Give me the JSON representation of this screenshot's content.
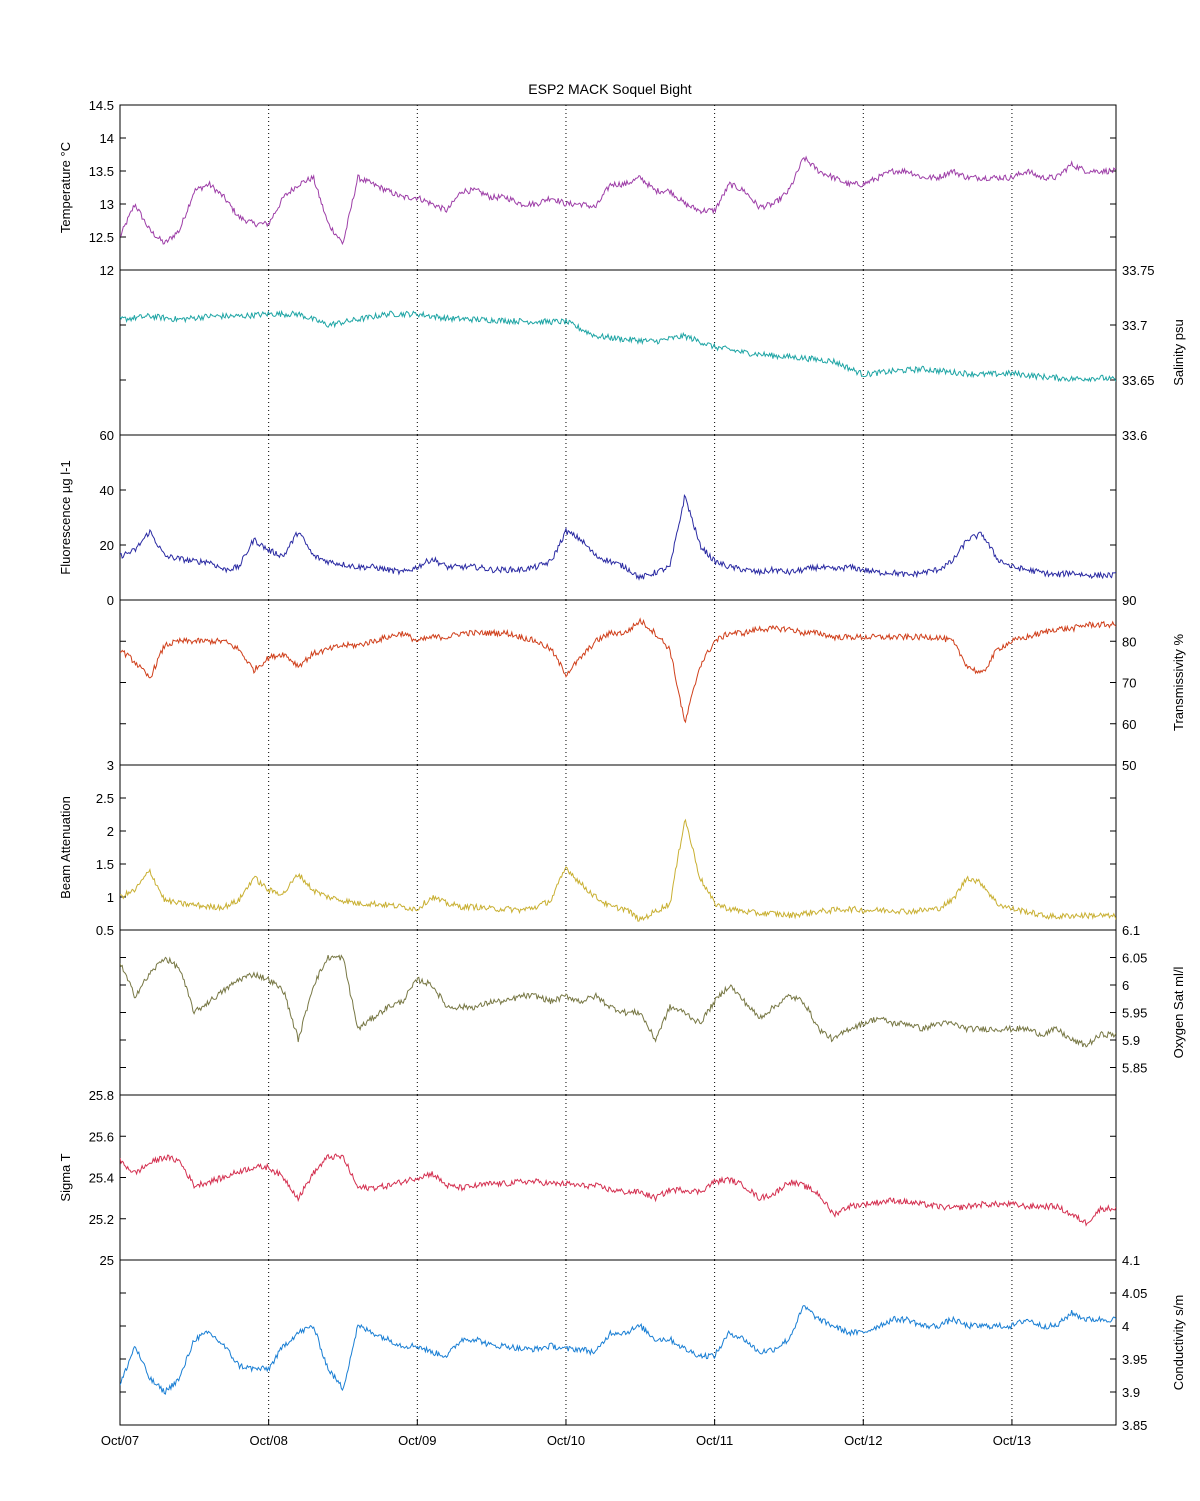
{
  "title": "ESP2 MACK  Soquel Bight",
  "x_ticks": [
    "Oct/07",
    "Oct/08",
    "Oct/09",
    "Oct/10",
    "Oct/11",
    "Oct/12",
    "Oct/13"
  ],
  "chart_data": [
    {
      "type": "line",
      "name": "temperature",
      "ylabel": "Temperature °C",
      "axis_side": "left",
      "color": "#9e3fa8",
      "ylim": [
        12,
        14.5
      ],
      "yticks": [
        12,
        12.5,
        13,
        13.5,
        14,
        14.5
      ],
      "tick_labels": [
        "12",
        "12.5",
        "13",
        "13.5",
        "14",
        "14.5"
      ],
      "x_unit": "days since Oct/07 00:00",
      "xlim": [
        0,
        6.7
      ],
      "x": [
        0,
        0.1,
        0.2,
        0.3,
        0.4,
        0.5,
        0.6,
        0.7,
        0.8,
        0.9,
        1.0,
        1.1,
        1.2,
        1.3,
        1.4,
        1.5,
        1.6,
        1.7,
        1.8,
        1.9,
        2.0,
        2.1,
        2.2,
        2.3,
        2.4,
        2.5,
        2.6,
        2.7,
        2.8,
        2.9,
        3.0,
        3.1,
        3.2,
        3.3,
        3.4,
        3.5,
        3.6,
        3.7,
        3.8,
        3.9,
        4.0,
        4.1,
        4.2,
        4.3,
        4.4,
        4.5,
        4.6,
        4.7,
        4.8,
        4.9,
        5.0,
        5.1,
        5.2,
        5.3,
        5.4,
        5.5,
        5.6,
        5.7,
        5.8,
        5.9,
        6.0,
        6.1,
        6.2,
        6.3,
        6.4,
        6.5,
        6.6,
        6.7
      ],
      "values": [
        12.5,
        13.0,
        12.6,
        12.4,
        12.6,
        13.2,
        13.3,
        13.1,
        12.8,
        12.7,
        12.7,
        13.1,
        13.3,
        13.4,
        12.7,
        12.4,
        13.4,
        13.3,
        13.2,
        13.1,
        13.1,
        13.0,
        12.9,
        13.2,
        13.2,
        13.1,
        13.1,
        13.0,
        13.0,
        13.1,
        13.0,
        13.0,
        12.95,
        13.3,
        13.3,
        13.4,
        13.2,
        13.2,
        13.0,
        12.9,
        12.9,
        13.3,
        13.2,
        12.95,
        13.0,
        13.2,
        13.7,
        13.5,
        13.4,
        13.3,
        13.3,
        13.4,
        13.5,
        13.5,
        13.4,
        13.4,
        13.5,
        13.4,
        13.4,
        13.4,
        13.4,
        13.5,
        13.4,
        13.4,
        13.6,
        13.5,
        13.5,
        13.5
      ]
    },
    {
      "type": "line",
      "name": "salinity",
      "ylabel": "Salinity psu",
      "axis_side": "right",
      "color": "#1fa5a5",
      "ylim": [
        33.6,
        33.75
      ],
      "yticks": [
        33.6,
        33.65,
        33.7,
        33.75
      ],
      "tick_labels": [
        "33.6",
        "33.65",
        "33.7",
        "33.75"
      ],
      "x_unit": "days since Oct/07 00:00",
      "xlim": [
        0,
        6.7
      ],
      "x": [
        0,
        0.2,
        0.4,
        0.6,
        0.8,
        1.0,
        1.2,
        1.4,
        1.6,
        1.8,
        2.0,
        2.2,
        2.4,
        2.6,
        2.8,
        3.0,
        3.2,
        3.4,
        3.6,
        3.8,
        4.0,
        4.2,
        4.4,
        4.6,
        4.8,
        5.0,
        5.2,
        5.4,
        5.6,
        5.8,
        6.0,
        6.2,
        6.4,
        6.6,
        6.7
      ],
      "values": [
        33.705,
        33.708,
        33.705,
        33.708,
        33.708,
        33.71,
        33.71,
        33.7,
        33.705,
        33.71,
        33.71,
        33.706,
        33.705,
        33.704,
        33.703,
        33.703,
        33.69,
        33.687,
        33.685,
        33.69,
        33.68,
        33.675,
        33.672,
        33.67,
        33.667,
        33.655,
        33.658,
        33.66,
        33.657,
        33.655,
        33.656,
        33.653,
        33.651,
        33.652,
        33.65
      ]
    },
    {
      "type": "line",
      "name": "fluorescence",
      "ylabel": "Fluorescence µg l-1",
      "axis_side": "left",
      "color": "#2b2ba3",
      "ylim": [
        0,
        60
      ],
      "yticks": [
        0,
        20,
        40,
        60
      ],
      "tick_labels": [
        "0",
        "20",
        "40",
        "60"
      ],
      "x_unit": "days since Oct/07 00:00",
      "xlim": [
        0,
        6.7
      ],
      "x": [
        0,
        0.1,
        0.2,
        0.3,
        0.4,
        0.5,
        0.6,
        0.7,
        0.8,
        0.9,
        1.0,
        1.1,
        1.2,
        1.3,
        1.4,
        1.5,
        1.6,
        1.7,
        1.8,
        1.9,
        2.0,
        2.1,
        2.2,
        2.3,
        2.4,
        2.5,
        2.6,
        2.7,
        2.8,
        2.9,
        3.0,
        3.1,
        3.2,
        3.3,
        3.4,
        3.5,
        3.6,
        3.7,
        3.8,
        3.9,
        4.0,
        4.1,
        4.2,
        4.3,
        4.4,
        4.5,
        4.6,
        4.7,
        4.8,
        4.9,
        5.0,
        5.1,
        5.2,
        5.3,
        5.4,
        5.5,
        5.6,
        5.7,
        5.8,
        5.9,
        6.0,
        6.1,
        6.2,
        6.3,
        6.4,
        6.5,
        6.6,
        6.7
      ],
      "values": [
        16,
        18,
        25,
        16,
        15,
        14,
        14,
        11,
        12,
        22,
        18,
        16,
        25,
        16,
        14,
        13,
        12,
        12,
        11,
        10,
        12,
        15,
        12,
        12,
        12,
        11,
        11,
        11,
        12,
        14,
        25,
        22,
        16,
        14,
        12,
        8,
        10,
        12,
        38,
        20,
        14,
        12,
        11,
        10,
        11,
        10,
        11,
        12,
        11,
        12,
        11,
        10,
        10,
        9,
        10,
        11,
        14,
        22,
        24,
        15,
        12,
        11,
        10,
        9,
        10,
        9,
        9,
        9
      ]
    },
    {
      "type": "line",
      "name": "transmissivity",
      "ylabel": "Transmissivity %",
      "axis_side": "right",
      "color": "#d0401c",
      "ylim": [
        50,
        90
      ],
      "yticks": [
        50,
        60,
        70,
        80,
        90
      ],
      "tick_labels": [
        "50",
        "60",
        "70",
        "80",
        "90"
      ],
      "x_unit": "days since Oct/07 00:00",
      "xlim": [
        0,
        6.7
      ],
      "x": [
        0,
        0.1,
        0.2,
        0.3,
        0.4,
        0.5,
        0.6,
        0.7,
        0.8,
        0.9,
        1.0,
        1.1,
        1.2,
        1.3,
        1.4,
        1.5,
        1.6,
        1.7,
        1.8,
        1.9,
        2.0,
        2.1,
        2.2,
        2.3,
        2.4,
        2.5,
        2.6,
        2.7,
        2.8,
        2.9,
        3.0,
        3.1,
        3.2,
        3.3,
        3.4,
        3.5,
        3.6,
        3.7,
        3.8,
        3.9,
        4.0,
        4.1,
        4.2,
        4.3,
        4.4,
        4.5,
        4.6,
        4.7,
        4.8,
        4.9,
        5.0,
        5.1,
        5.2,
        5.3,
        5.4,
        5.5,
        5.6,
        5.7,
        5.8,
        5.9,
        6.0,
        6.1,
        6.2,
        6.3,
        6.4,
        6.5,
        6.6,
        6.7
      ],
      "values": [
        78,
        75,
        71,
        79,
        80,
        80,
        80,
        80,
        78,
        73,
        76,
        77,
        74,
        77,
        78,
        79,
        79,
        80,
        81,
        82,
        80,
        81,
        81,
        82,
        82,
        82,
        82,
        81,
        80,
        78,
        72,
        76,
        80,
        82,
        82,
        85,
        82,
        78,
        60,
        74,
        80,
        82,
        82,
        83,
        83,
        83,
        82,
        82,
        81,
        81,
        81,
        81,
        81,
        81,
        81,
        81,
        80,
        74,
        72,
        78,
        80,
        81,
        82,
        83,
        83,
        84,
        84,
        84
      ]
    },
    {
      "type": "line",
      "name": "beam-attenuation",
      "ylabel": "Beam Attenuation",
      "axis_side": "left",
      "color": "#c9b033",
      "ylim": [
        0.5,
        3
      ],
      "yticks": [
        0.5,
        1,
        1.5,
        2,
        2.5,
        3
      ],
      "tick_labels": [
        "0.5",
        "1",
        "1.5",
        "2",
        "2.5",
        "3"
      ],
      "x_unit": "days since Oct/07 00:00",
      "xlim": [
        0,
        6.7
      ],
      "x": [
        0,
        0.1,
        0.2,
        0.3,
        0.4,
        0.5,
        0.6,
        0.7,
        0.8,
        0.9,
        1.0,
        1.1,
        1.2,
        1.3,
        1.4,
        1.5,
        1.6,
        1.7,
        1.8,
        1.9,
        2.0,
        2.1,
        2.2,
        2.3,
        2.4,
        2.5,
        2.6,
        2.7,
        2.8,
        2.9,
        3.0,
        3.1,
        3.2,
        3.3,
        3.4,
        3.5,
        3.6,
        3.7,
        3.8,
        3.9,
        4.0,
        4.1,
        4.2,
        4.3,
        4.4,
        4.5,
        4.6,
        4.7,
        4.8,
        4.9,
        5.0,
        5.1,
        5.2,
        5.3,
        5.4,
        5.5,
        5.6,
        5.7,
        5.8,
        5.9,
        6.0,
        6.1,
        6.2,
        6.3,
        6.4,
        6.5,
        6.6,
        6.7
      ],
      "values": [
        1.0,
        1.1,
        1.4,
        0.95,
        0.9,
        0.88,
        0.85,
        0.85,
        0.95,
        1.3,
        1.1,
        1.05,
        1.35,
        1.1,
        1.0,
        0.95,
        0.9,
        0.9,
        0.88,
        0.85,
        0.82,
        1.0,
        0.9,
        0.85,
        0.85,
        0.82,
        0.82,
        0.8,
        0.85,
        0.95,
        1.45,
        1.2,
        1.0,
        0.85,
        0.82,
        0.65,
        0.78,
        0.9,
        2.2,
        1.3,
        0.9,
        0.82,
        0.78,
        0.75,
        0.75,
        0.72,
        0.75,
        0.78,
        0.8,
        0.82,
        0.8,
        0.8,
        0.8,
        0.78,
        0.8,
        0.82,
        0.95,
        1.3,
        1.2,
        0.9,
        0.82,
        0.78,
        0.72,
        0.7,
        0.72,
        0.72,
        0.72,
        0.7
      ]
    },
    {
      "type": "line",
      "name": "oxygen-sat",
      "ylabel": "Oxygen Sat ml/l",
      "axis_side": "right",
      "color": "#787845",
      "ylim": [
        5.8,
        6.1
      ],
      "yticks": [
        5.85,
        5.9,
        5.95,
        6,
        6.05,
        6.1
      ],
      "tick_labels": [
        "5.85",
        "5.9",
        "5.95",
        "6",
        "6.05",
        "6.1"
      ],
      "x_unit": "days since Oct/07 00:00",
      "xlim": [
        0,
        6.7
      ],
      "x": [
        0,
        0.1,
        0.2,
        0.3,
        0.4,
        0.5,
        0.6,
        0.7,
        0.8,
        0.9,
        1.0,
        1.1,
        1.2,
        1.3,
        1.4,
        1.5,
        1.6,
        1.7,
        1.8,
        1.9,
        2.0,
        2.1,
        2.2,
        2.3,
        2.4,
        2.5,
        2.6,
        2.7,
        2.8,
        2.9,
        3.0,
        3.1,
        3.2,
        3.3,
        3.4,
        3.5,
        3.6,
        3.7,
        3.8,
        3.9,
        4.0,
        4.1,
        4.2,
        4.3,
        4.4,
        4.5,
        4.6,
        4.7,
        4.8,
        4.9,
        5.0,
        5.1,
        5.2,
        5.3,
        5.4,
        5.5,
        5.6,
        5.7,
        5.8,
        5.9,
        6.0,
        6.1,
        6.2,
        6.3,
        6.4,
        6.5,
        6.6,
        6.7
      ],
      "values": [
        6.04,
        5.98,
        6.02,
        6.05,
        6.03,
        5.95,
        5.97,
        5.99,
        6.01,
        6.02,
        6.01,
        5.99,
        5.9,
        6.0,
        6.05,
        6.05,
        5.92,
        5.94,
        5.96,
        5.97,
        6.01,
        6.0,
        5.96,
        5.96,
        5.96,
        5.97,
        5.97,
        5.98,
        5.98,
        5.97,
        5.98,
        5.97,
        5.98,
        5.96,
        5.95,
        5.95,
        5.9,
        5.96,
        5.95,
        5.93,
        5.97,
        6.0,
        5.97,
        5.94,
        5.96,
        5.98,
        5.97,
        5.92,
        5.9,
        5.92,
        5.93,
        5.94,
        5.93,
        5.93,
        5.92,
        5.93,
        5.93,
        5.92,
        5.92,
        5.92,
        5.92,
        5.92,
        5.91,
        5.92,
        5.9,
        5.89,
        5.91,
        5.91
      ]
    },
    {
      "type": "line",
      "name": "sigma-t",
      "ylabel": "Sigma T",
      "axis_side": "left",
      "color": "#d43050",
      "ylim": [
        25,
        25.8
      ],
      "yticks": [
        25,
        25.2,
        25.4,
        25.6,
        25.8
      ],
      "tick_labels": [
        "25",
        "25.2",
        "25.4",
        "25.6",
        "25.8"
      ],
      "x_unit": "days since Oct/07 00:00",
      "xlim": [
        0,
        6.7
      ],
      "x": [
        0,
        0.1,
        0.2,
        0.3,
        0.4,
        0.5,
        0.6,
        0.7,
        0.8,
        0.9,
        1.0,
        1.1,
        1.2,
        1.3,
        1.4,
        1.5,
        1.6,
        1.7,
        1.8,
        1.9,
        2.0,
        2.1,
        2.2,
        2.3,
        2.4,
        2.5,
        2.6,
        2.7,
        2.8,
        2.9,
        3.0,
        3.1,
        3.2,
        3.3,
        3.4,
        3.5,
        3.6,
        3.7,
        3.8,
        3.9,
        4.0,
        4.1,
        4.2,
        4.3,
        4.4,
        4.5,
        4.6,
        4.7,
        4.8,
        4.9,
        5.0,
        5.1,
        5.2,
        5.3,
        5.4,
        5.5,
        5.6,
        5.7,
        5.8,
        5.9,
        6.0,
        6.1,
        6.2,
        6.3,
        6.4,
        6.5,
        6.6,
        6.7
      ],
      "values": [
        25.48,
        25.42,
        25.47,
        25.5,
        25.48,
        25.36,
        25.38,
        25.4,
        25.43,
        25.45,
        25.45,
        25.4,
        25.3,
        25.42,
        25.5,
        25.5,
        25.35,
        25.35,
        25.36,
        25.38,
        25.4,
        25.42,
        25.36,
        25.35,
        25.36,
        25.37,
        25.37,
        25.38,
        25.38,
        25.37,
        25.37,
        25.36,
        25.36,
        25.34,
        25.33,
        25.33,
        25.3,
        25.34,
        25.34,
        25.33,
        25.38,
        25.39,
        25.36,
        25.3,
        25.32,
        25.38,
        25.36,
        25.32,
        25.22,
        25.26,
        25.27,
        25.28,
        25.29,
        25.28,
        25.27,
        25.26,
        25.25,
        25.26,
        25.27,
        25.27,
        25.27,
        25.26,
        25.26,
        25.26,
        25.22,
        25.18,
        25.25,
        25.25
      ]
    },
    {
      "type": "line",
      "name": "conductivity",
      "ylabel": "Conductivity s/m",
      "axis_side": "right",
      "color": "#1a7fd4",
      "ylim": [
        3.85,
        4.1
      ],
      "yticks": [
        3.85,
        3.9,
        3.95,
        4,
        4.05,
        4.1
      ],
      "tick_labels": [
        "3.85",
        "3.9",
        "3.95",
        "4",
        "4.05",
        "4.1"
      ],
      "x_unit": "days since Oct/07 00:00",
      "xlim": [
        0,
        6.7
      ],
      "x": [
        0,
        0.1,
        0.2,
        0.3,
        0.4,
        0.5,
        0.6,
        0.7,
        0.8,
        0.9,
        1.0,
        1.1,
        1.2,
        1.3,
        1.4,
        1.5,
        1.6,
        1.7,
        1.8,
        1.9,
        2.0,
        2.1,
        2.2,
        2.3,
        2.4,
        2.5,
        2.6,
        2.7,
        2.8,
        2.9,
        3.0,
        3.1,
        3.2,
        3.3,
        3.4,
        3.5,
        3.6,
        3.7,
        3.8,
        3.9,
        4.0,
        4.1,
        4.2,
        4.3,
        4.4,
        4.5,
        4.6,
        4.7,
        4.8,
        4.9,
        5.0,
        5.1,
        5.2,
        5.3,
        5.4,
        5.5,
        5.6,
        5.7,
        5.8,
        5.9,
        6.0,
        6.1,
        6.2,
        6.3,
        6.4,
        6.5,
        6.6,
        6.7
      ],
      "values": [
        3.91,
        3.97,
        3.92,
        3.9,
        3.92,
        3.98,
        3.99,
        3.97,
        3.94,
        3.935,
        3.935,
        3.97,
        3.99,
        4.0,
        3.935,
        3.905,
        4.0,
        3.99,
        3.98,
        3.97,
        3.97,
        3.96,
        3.955,
        3.98,
        3.98,
        3.97,
        3.97,
        3.965,
        3.965,
        3.97,
        3.965,
        3.965,
        3.96,
        3.99,
        3.99,
        4.0,
        3.98,
        3.98,
        3.965,
        3.955,
        3.955,
        3.99,
        3.98,
        3.96,
        3.965,
        3.98,
        4.03,
        4.01,
        4.0,
        3.99,
        3.99,
        4.0,
        4.01,
        4.01,
        4.0,
        4.0,
        4.01,
        4.0,
        4.0,
        4.0,
        4.0,
        4.01,
        4.0,
        4.0,
        4.02,
        4.01,
        4.01,
        4.01
      ]
    }
  ]
}
